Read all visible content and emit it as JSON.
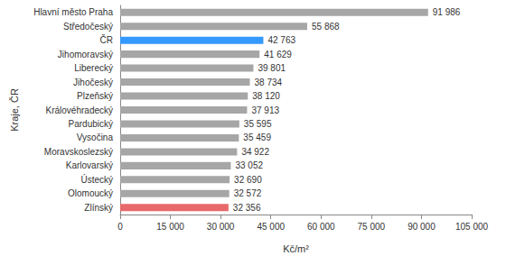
{
  "chart_data": {
    "type": "bar",
    "orientation": "horizontal",
    "x_label": "Kč/m²",
    "y_label": "Kraje, ČR",
    "categories": [
      "Hlavní město Praha",
      "Středočeský",
      "ČR",
      "Jihomoravský",
      "Liberecký",
      "Jihočeský",
      "Plzeňský",
      "Královéhradecký",
      "Pardubický",
      "Vysočina",
      "Moravskoslezský",
      "Karlovarský",
      "Ústecký",
      "Olomoucký",
      "Zlínský"
    ],
    "values": [
      91986,
      55868,
      42763,
      41629,
      39801,
      38734,
      38120,
      37913,
      35595,
      35459,
      34922,
      33052,
      32690,
      32572,
      32356
    ],
    "value_labels": [
      "91 986",
      "55 868",
      "42 763",
      "41 629",
      "39 801",
      "38 734",
      "38 120",
      "37 913",
      "35 595",
      "35 459",
      "34 922",
      "33 052",
      "32 690",
      "32 572",
      "32 356"
    ],
    "colors": [
      "#a6a6a6",
      "#a6a6a6",
      "#3399ff",
      "#a6a6a6",
      "#a6a6a6",
      "#a6a6a6",
      "#a6a6a6",
      "#a6a6a6",
      "#a6a6a6",
      "#a6a6a6",
      "#a6a6a6",
      "#a6a6a6",
      "#a6a6a6",
      "#a6a6a6",
      "#e8696b"
    ],
    "xlim": [
      0,
      105000
    ],
    "xticks": [
      0,
      {
        "value": 15000,
        "label": "15 000"
      },
      {
        "value": 30000,
        "label": "30 000"
      },
      {
        "value": 45000,
        "label": "45 000"
      },
      {
        "value": 60000,
        "label": "60 000"
      },
      {
        "value": 75000,
        "label": "75 000"
      },
      {
        "value": 90000,
        "label": "90 000"
      },
      {
        "value": 105000,
        "label": "105 000"
      }
    ],
    "grid": false,
    "data_labels": true
  }
}
